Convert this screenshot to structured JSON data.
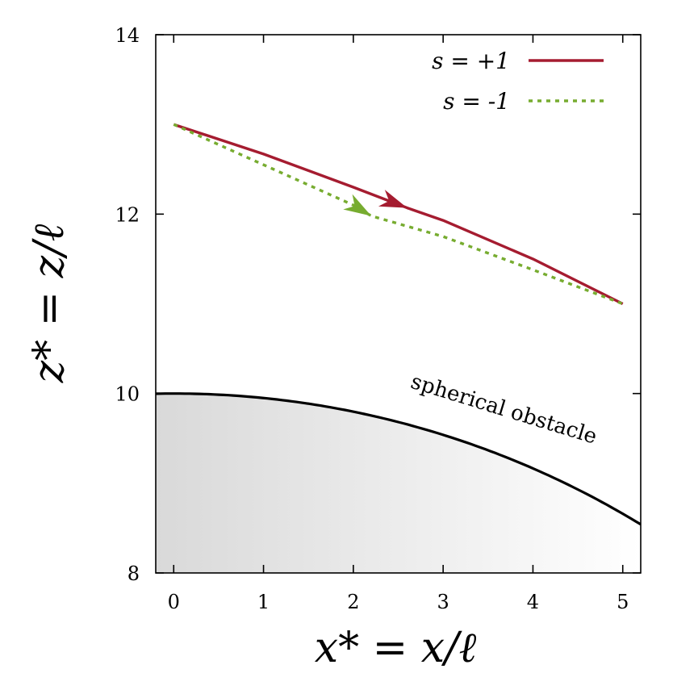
{
  "chart_data": {
    "type": "line",
    "title": "",
    "xlabel": "x* = x/ℓ",
    "ylabel": "z* = z/ℓ",
    "xlim": [
      -0.2,
      5.2
    ],
    "ylim": [
      8,
      14
    ],
    "x_ticks": [
      0,
      1,
      2,
      3,
      4,
      5
    ],
    "y_ticks": [
      8,
      10,
      12,
      14
    ],
    "x_tick_labels": [
      "0",
      "1",
      "2",
      "3",
      "4",
      "5"
    ],
    "y_tick_labels": [
      "8",
      "10",
      "12",
      "14"
    ],
    "grid": false,
    "legend_position": "top-right",
    "series": [
      {
        "name": "s = +1",
        "color": "#a51c30",
        "style": "solid",
        "x": [
          0,
          1,
          2,
          2.6,
          3,
          4,
          5
        ],
        "y": [
          13.0,
          12.67,
          12.3,
          12.07,
          11.93,
          11.5,
          11.0
        ],
        "arrow_at_x": 2.6
      },
      {
        "name": "s = -1",
        "color": "#77ac30",
        "style": "dotted",
        "x": [
          0,
          1,
          2,
          2.2,
          3,
          4,
          5
        ],
        "y": [
          13.0,
          12.55,
          12.1,
          11.98,
          11.75,
          11.38,
          11.0
        ],
        "arrow_at_x": 2.2
      }
    ],
    "obstacle": {
      "label": "spherical obstacle",
      "center_z": 0,
      "radius": 10,
      "color": "#000000",
      "fill_from": "#d9d9d9",
      "fill_to": "#ffffff"
    }
  }
}
